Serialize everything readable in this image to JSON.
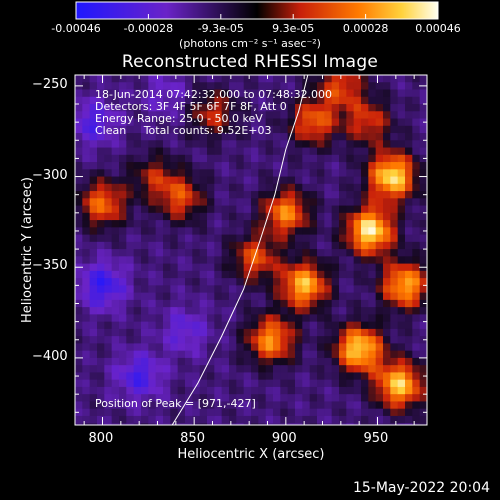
{
  "colorbar": {
    "tick_labels": [
      "-0.00046",
      "-0.00028",
      "-9.3e-05",
      "9.3e-05",
      "0.00028",
      "0.00046"
    ],
    "units_text": "(photons cm⁻² s⁻¹ asec⁻²)"
  },
  "title": "Reconstructed RHESSI Image",
  "info": {
    "time_range": "18-Jun-2014 07:42:32.000 to 07:48:32.000",
    "detectors": "Detectors: 3F 4F 5F 6F 7F 8F, Att 0",
    "energy": "Energy Range: 25.0 - 50.0 keV",
    "clean": "Clean     Total counts: 9.52E+03"
  },
  "peak_text": "Position of Peak = [971,-427]",
  "timestamp": "15-May-2022 20:04",
  "chart_data": {
    "type": "heatmap",
    "title": "Reconstructed RHESSI Image",
    "xlabel": "Heliocentric X (arcsec)",
    "ylabel": "Heliocentric Y (arcsec)",
    "xlim": [
      785,
      977
    ],
    "ylim": [
      -437,
      -244
    ],
    "x_ticks": [
      800,
      850,
      900,
      950
    ],
    "y_ticks": [
      -250,
      -300,
      -350,
      -400
    ],
    "colorbar_range": [
      -0.00046,
      0.00046
    ],
    "peak_position": [
      971,
      -427
    ],
    "limb_curve": [
      [
        838,
        -437
      ],
      [
        852,
        -414
      ],
      [
        865,
        -388
      ],
      [
        877,
        -362
      ],
      [
        886,
        -335
      ],
      [
        894,
        -310
      ],
      [
        900,
        -285
      ],
      [
        907,
        -264
      ],
      [
        912,
        -244
      ]
    ],
    "bright_blobs": [
      {
        "x": 946,
        "y": -330,
        "value": 0.00046
      },
      {
        "x": 958,
        "y": -300,
        "value": 0.00044
      },
      {
        "x": 940,
        "y": -395,
        "value": 0.00042
      },
      {
        "x": 962,
        "y": -415,
        "value": 0.0004
      },
      {
        "x": 910,
        "y": -360,
        "value": 0.00038
      },
      {
        "x": 892,
        "y": -390,
        "value": 0.00032
      },
      {
        "x": 900,
        "y": -320,
        "value": 0.0003
      },
      {
        "x": 965,
        "y": -360,
        "value": 0.00036
      },
      {
        "x": 883,
        "y": -345,
        "value": 0.00022
      },
      {
        "x": 915,
        "y": -270,
        "value": 0.00024
      },
      {
        "x": 930,
        "y": -250,
        "value": 0.0002
      },
      {
        "x": 945,
        "y": -270,
        "value": 0.00018
      },
      {
        "x": 800,
        "y": -315,
        "value": 0.00026
      },
      {
        "x": 843,
        "y": -312,
        "value": 0.0002
      },
      {
        "x": 860,
        "y": -265,
        "value": 0.00016
      },
      {
        "x": 828,
        "y": -300,
        "value": 0.00012
      }
    ],
    "dark_blobs": [
      {
        "x": 800,
        "y": -360,
        "value": -0.00034
      },
      {
        "x": 820,
        "y": -410,
        "value": -0.0003
      },
      {
        "x": 795,
        "y": -270,
        "value": -0.00028
      },
      {
        "x": 845,
        "y": -385,
        "value": -0.00024
      },
      {
        "x": 835,
        "y": -255,
        "value": -0.0002
      }
    ]
  }
}
